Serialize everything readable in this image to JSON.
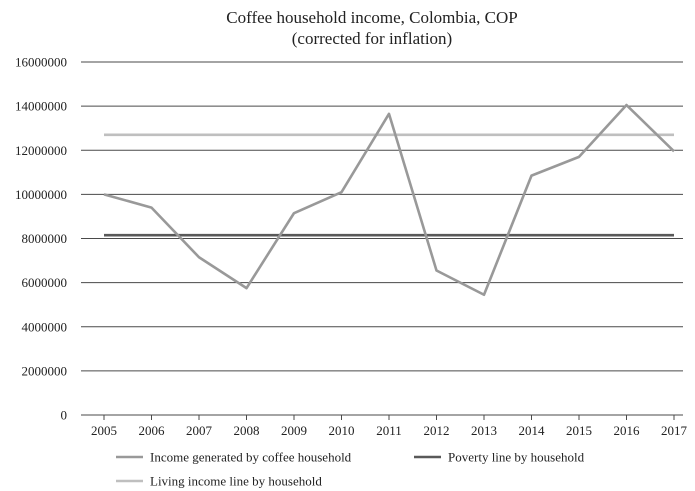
{
  "chart_data": {
    "type": "line",
    "title": "Coffee household income, Colombia, COP",
    "subtitle": "(corrected for inflation)",
    "xlabel": "",
    "ylabel": "",
    "categories": [
      "2005",
      "2006",
      "2007",
      "2008",
      "2009",
      "2010",
      "2011",
      "2012",
      "2013",
      "2014",
      "2015",
      "2016",
      "2017"
    ],
    "ylim": [
      0,
      16000000
    ],
    "y_ticks": [
      "0",
      "2000000",
      "4000000",
      "6000000",
      "8000000",
      "10000000",
      "12000000",
      "14000000",
      "16000000"
    ],
    "grid": true,
    "legend_position": "bottom",
    "series": [
      {
        "name": "Income generated by coffee household",
        "color": "#999999",
        "values": [
          10000000,
          9400000,
          7150000,
          5750000,
          9150000,
          10100000,
          13650000,
          6550000,
          5450000,
          10850000,
          11700000,
          14050000,
          11950000
        ]
      },
      {
        "name": "Poverty line by household",
        "color": "#595959",
        "values": [
          8150000,
          8150000,
          8150000,
          8150000,
          8150000,
          8150000,
          8150000,
          8150000,
          8150000,
          8150000,
          8150000,
          8150000,
          8150000
        ]
      },
      {
        "name": "Living income line by household",
        "color": "#bfbfbf",
        "values": [
          12700000,
          12700000,
          12700000,
          12700000,
          12700000,
          12700000,
          12700000,
          12700000,
          12700000,
          12700000,
          12700000,
          12700000,
          12700000
        ]
      }
    ]
  }
}
